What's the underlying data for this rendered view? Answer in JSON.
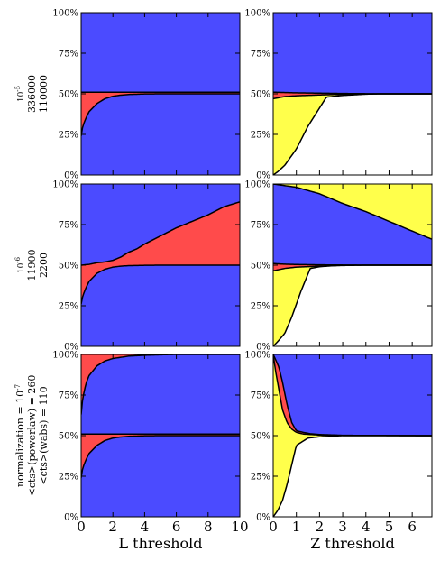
{
  "chart_data": {
    "type": "area",
    "colors": {
      "red": "#ff4b4b",
      "blue": "#4b4bff",
      "yellow": "#ffff4b",
      "line": "#000000"
    },
    "y_ticks": [
      "0%",
      "25%",
      "50%",
      "75%",
      "100%"
    ],
    "ylim": [
      0,
      100
    ],
    "columns": [
      {
        "xlabel": "L threshold",
        "xlim": [
          0,
          10
        ],
        "x_ticks": [
          0,
          2,
          4,
          6,
          8,
          10
        ]
      },
      {
        "xlabel": "Z threshold",
        "xlim": [
          0,
          6.85
        ],
        "x_ticks": [
          0,
          1,
          2,
          3,
          4,
          5,
          6
        ]
      }
    ],
    "rows": [
      {
        "label_lines": [
          "10^-5",
          "336000",
          "110000"
        ],
        "panels": [
          {
            "layers": [
              {
                "color": "blue",
                "x": [
                  0,
                  10
                ],
                "y": [
                  0,
                  0
                ]
              },
              {
                "color": "red",
                "x": [
                  0,
                  0.1,
                  0.3,
                  0.5,
                  1,
                  1.5,
                  2,
                  2.5,
                  3,
                  4,
                  5,
                  10
                ],
                "y": [
                  24,
                  30,
                  35,
                  39,
                  44,
                  47,
                  48.5,
                  49.2,
                  49.6,
                  49.9,
                  50,
                  50
                ]
              },
              {
                "color": "blue",
                "x": [
                  0,
                  10
                ],
                "y": [
                  51,
                  51
                ]
              }
            ]
          },
          {
            "layers": [
              {
                "color": "yellow",
                "x": [
                  0,
                  0.2,
                  0.5,
                  1,
                  1.5,
                  2.3,
                  3,
                  4,
                  4.6,
                  6.85
                ],
                "y": [
                  0,
                  2,
                  6,
                  16,
                  30,
                  48,
                  49,
                  49.8,
                  50,
                  50
                ]
              },
              {
                "color": "red",
                "x": [
                  0,
                  0.5,
                  1,
                  2,
                  3,
                  4,
                  4.6,
                  6.85
                ],
                "y": [
                  47,
                  48.3,
                  48.8,
                  49.3,
                  49.7,
                  49.9,
                  50,
                  50
                ]
              },
              {
                "color": "blue",
                "x": [
                  0,
                  0.5,
                  1,
                  2,
                  3,
                  4,
                  4.6,
                  6.85
                ],
                "y": [
                  51,
                  50.8,
                  50.6,
                  50.4,
                  50.2,
                  50.1,
                  50,
                  50
                ]
              }
            ]
          }
        ]
      },
      {
        "label_lines": [
          "10^-6",
          "11900",
          "2200"
        ],
        "panels": [
          {
            "layers": [
              {
                "color": "blue",
                "x": [
                  0,
                  10
                ],
                "y": [
                  0,
                  0
                ]
              },
              {
                "color": "red",
                "x": [
                  0,
                  0.1,
                  0.3,
                  0.5,
                  1,
                  1.5,
                  2,
                  2.5,
                  3,
                  4,
                  5,
                  10
                ],
                "y": [
                  26,
                  31,
                  36,
                  40,
                  45,
                  47.5,
                  48.8,
                  49.4,
                  49.7,
                  49.9,
                  50,
                  50
                ]
              },
              {
                "color": "blue",
                "x": [
                  0,
                  0.5,
                  1,
                  1.5,
                  2,
                  2.5,
                  3,
                  3.5,
                  4,
                  5,
                  6,
                  7,
                  8,
                  9,
                  10
                ],
                "y": [
                  50,
                  50.5,
                  51.5,
                  52,
                  53,
                  55,
                  58,
                  60,
                  63,
                  68,
                  73,
                  77,
                  81,
                  86,
                  89
                ]
              }
            ]
          },
          {
            "layers": [
              {
                "color": "yellow",
                "x": [
                  0,
                  0.2,
                  0.5,
                  0.8,
                  1.2,
                  1.6,
                  2,
                  2.5,
                  3,
                  4,
                  6.85
                ],
                "y": [
                  0,
                  3,
                  8,
                  18,
                  34,
                  48,
                  49,
                  49.6,
                  50,
                  50,
                  50
                ]
              },
              {
                "color": "red",
                "x": [
                  0,
                  0.5,
                  1,
                  2,
                  3,
                  4,
                  6.85
                ],
                "y": [
                  46.5,
                  48,
                  48.8,
                  49.4,
                  49.8,
                  50,
                  50
                ]
              },
              {
                "color": "blue",
                "x": [
                  0,
                  0.5,
                  1,
                  2,
                  3,
                  4,
                  6.85
                ],
                "y": [
                  51,
                  50.6,
                  50.4,
                  50.2,
                  50.1,
                  50,
                  50
                ]
              },
              {
                "color": "yellow",
                "x": [
                  0,
                  0.5,
                  1,
                  1.5,
                  2,
                  2.5,
                  3,
                  4,
                  5,
                  6,
                  6.85
                ],
                "y": [
                  100,
                  99,
                  98,
                  96,
                  94,
                  91,
                  88,
                  83,
                  77,
                  71,
                  66
                ]
              }
            ]
          }
        ]
      },
      {
        "label_lines": [
          "normalization = 10^-7",
          "<cts>(powerlaw) = 260",
          "<cts>(wabs) = 110"
        ],
        "panels": [
          {
            "layers": [
              {
                "color": "blue",
                "x": [
                  0,
                  10
                ],
                "y": [
                  0,
                  0
                ]
              },
              {
                "color": "red",
                "x": [
                  0,
                  0.1,
                  0.3,
                  0.5,
                  1,
                  1.5,
                  2,
                  2.5,
                  3,
                  4,
                  5,
                  10
                ],
                "y": [
                  24,
                  30,
                  35,
                  39,
                  44,
                  47,
                  48.5,
                  49.2,
                  49.6,
                  49.9,
                  50,
                  50
                ]
              },
              {
                "color": "blue",
                "x": [
                  0,
                  10
                ],
                "y": [
                  51,
                  51
                ]
              },
              {
                "color": "red",
                "x": [
                  0,
                  0.1,
                  0.3,
                  0.5,
                  1,
                  1.5,
                  2,
                  3,
                  4,
                  5,
                  6,
                  10
                ],
                "y": [
                  63,
                  73,
                  82,
                  87,
                  93,
                  96,
                  97.5,
                  99,
                  99.5,
                  99.8,
                  100,
                  100
                ]
              }
            ]
          },
          {
            "layers": [
              {
                "color": "yellow",
                "x": [
                  0,
                  0.2,
                  0.4,
                  0.6,
                  0.8,
                  1,
                  1.5,
                  2,
                  3,
                  6.85
                ],
                "y": [
                  0,
                  4,
                  10,
                  20,
                  32,
                  44,
                  48.5,
                  49.3,
                  50,
                  50
                ]
              },
              {
                "color": "red",
                "x": [
                  0,
                  0.1,
                  0.25,
                  0.4,
                  0.6,
                  0.8,
                  1,
                  1.3,
                  1.6,
                  2,
                  3,
                  6.85
                ],
                "y": [
                  100,
                  90,
                  78,
                  66,
                  58,
                  54,
                  52,
                  51,
                  50.7,
                  50.4,
                  50.1,
                  50
                ]
              },
              {
                "color": "blue",
                "x": [
                  0,
                  0.1,
                  0.25,
                  0.4,
                  0.6,
                  0.8,
                  1,
                  1.3,
                  1.6,
                  2,
                  3,
                  6.85
                ],
                "y": [
                  100,
                  97,
                  92,
                  83,
                  69,
                  58,
                  53,
                  52,
                  51.2,
                  50.7,
                  50.2,
                  50
                ]
              }
            ]
          }
        ]
      }
    ]
  }
}
